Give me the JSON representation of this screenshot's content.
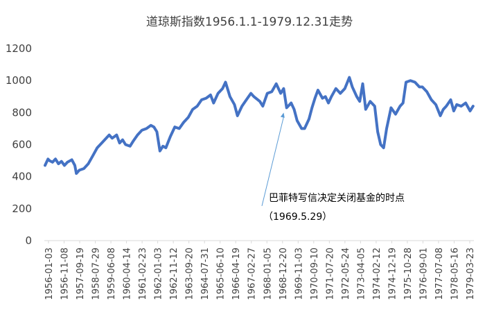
{
  "chart_data": {
    "type": "line",
    "title": "道琼斯指数1956.1.1-1979.12.31走势",
    "xlabel": "",
    "ylabel": "",
    "ylim": [
      0,
      1200
    ],
    "yticks": [
      0,
      200,
      400,
      600,
      800,
      1000,
      1200
    ],
    "grid": false,
    "legend": "none",
    "color": "#4472C4",
    "xticks": [
      "1956-01-03",
      "1956-11-08",
      "1957-09-19",
      "1958-07-29",
      "1959-06-08",
      "1960-04-14",
      "1961-02-23",
      "1962-01-03",
      "1962-11-12",
      "1963-09-20",
      "1964-07-31",
      "1965-06-10",
      "1966-04-19",
      "1967-02-27",
      "1968-01-05",
      "1968-12-20",
      "1969-11-03",
      "1970-09-10",
      "1971-07-20",
      "1972-05-24",
      "1973-04-05",
      "1974-02-12",
      "1974-12-19",
      "1975-10-28",
      "1976-09-01",
      "1977-07-08",
      "1978-05-16",
      "1979-03-23"
    ],
    "series": [
      {
        "x": [
          "1956-01",
          "1956-03",
          "1956-04",
          "1956-06",
          "1956-08",
          "1956-10",
          "1956-12",
          "1957-02",
          "1957-04",
          "1957-07",
          "1957-09",
          "1957-10",
          "1957-12",
          "1958-03",
          "1958-06",
          "1958-09",
          "1958-12",
          "1959-03",
          "1959-06",
          "1959-08",
          "1959-10",
          "1960-01",
          "1960-03",
          "1960-05",
          "1960-07",
          "1960-10",
          "1960-12",
          "1961-03",
          "1961-06",
          "1961-09",
          "1961-12",
          "1962-02",
          "1962-04",
          "1962-06",
          "1962-08",
          "1962-10",
          "1963-01",
          "1963-04",
          "1963-07",
          "1963-10",
          "1964-01",
          "1964-04",
          "1964-07",
          "1964-10",
          "1965-01",
          "1965-04",
          "1965-06",
          "1965-09",
          "1965-12",
          "1966-02",
          "1966-05",
          "1966-08",
          "1966-10",
          "1967-01",
          "1967-04",
          "1967-07",
          "1967-09",
          "1968-01",
          "1968-03",
          "1968-06",
          "1968-09",
          "1968-12",
          "1969-03",
          "1969-05",
          "1969-07",
          "1969-10",
          "1969-12",
          "1970-02",
          "1970-05",
          "1970-07",
          "1970-10",
          "1970-12",
          "1971-02",
          "1971-04",
          "1971-07",
          "1971-09",
          "1971-11",
          "1972-01",
          "1972-04",
          "1972-07",
          "1972-10",
          "1973-01",
          "1973-03",
          "1973-06",
          "1973-08",
          "1973-10",
          "1973-12",
          "1974-03",
          "1974-06",
          "1974-08",
          "1974-10",
          "1974-12",
          "1975-02",
          "1975-05",
          "1975-08",
          "1975-11",
          "1976-01",
          "1976-03",
          "1976-06",
          "1976-09",
          "1976-12",
          "1977-02",
          "1977-05",
          "1977-08",
          "1977-11",
          "1978-02",
          "1978-04",
          "1978-06",
          "1978-09",
          "1978-11",
          "1979-01",
          "1979-04",
          "1979-07",
          "1979-10",
          "1979-12"
        ],
        "values": [
          470,
          510,
          500,
          490,
          510,
          480,
          495,
          470,
          490,
          505,
          470,
          420,
          440,
          450,
          480,
          530,
          580,
          610,
          640,
          660,
          640,
          660,
          610,
          630,
          600,
          590,
          620,
          660,
          690,
          700,
          720,
          710,
          680,
          560,
          590,
          580,
          650,
          710,
          700,
          740,
          770,
          820,
          840,
          880,
          890,
          910,
          860,
          920,
          950,
          990,
          900,
          850,
          780,
          840,
          880,
          920,
          900,
          870,
          840,
          920,
          930,
          980,
          920,
          950,
          830,
          860,
          820,
          750,
          700,
          700,
          760,
          830,
          890,
          940,
          890,
          900,
          860,
          900,
          950,
          920,
          950,
          1020,
          960,
          900,
          870,
          980,
          820,
          870,
          840,
          680,
          600,
          580,
          700,
          830,
          790,
          840,
          860,
          990,
          1000,
          990,
          960,
          960,
          930,
          880,
          850,
          780,
          820,
          840,
          880,
          810,
          850,
          840,
          860,
          810,
          840
        ]
      }
    ],
    "annotation": {
      "text": "巴菲特写信决定关闭基金的时点",
      "date_label": "（1969.5.29）",
      "target": {
        "x": "1969-05",
        "y": 800
      }
    }
  }
}
